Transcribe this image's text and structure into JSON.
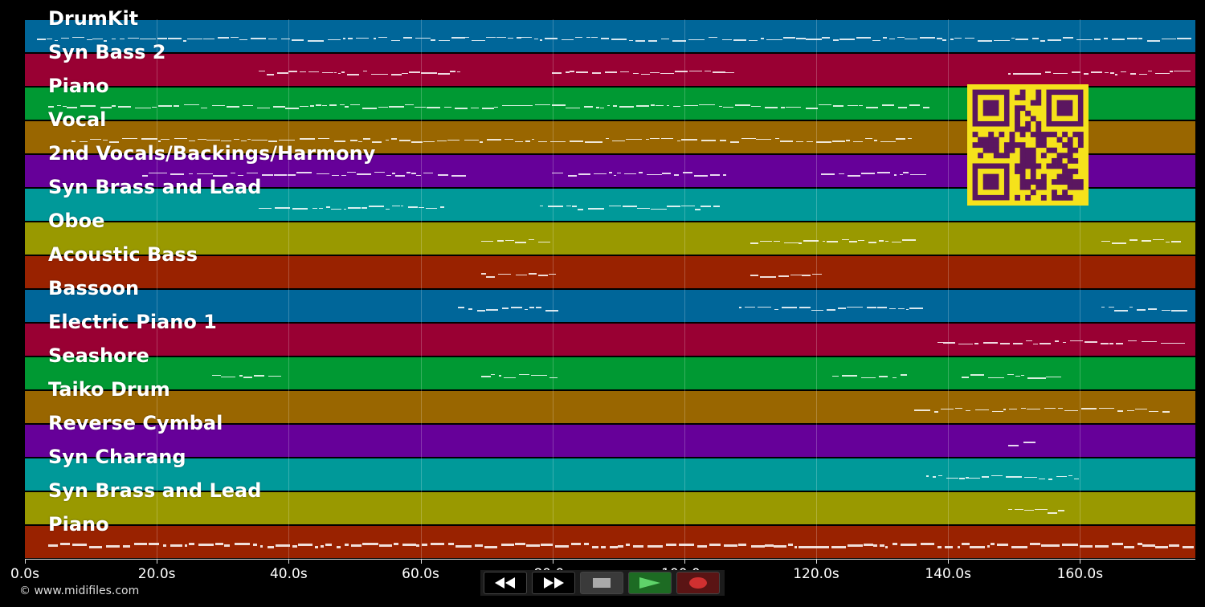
{
  "tracks": [
    {
      "name": "DrumKit",
      "color": "#006699"
    },
    {
      "name": "Syn Bass 2",
      "color": "#990033"
    },
    {
      "name": "Piano",
      "color": "#009933"
    },
    {
      "name": "Vocal",
      "color": "#996600"
    },
    {
      "name": "2nd Vocals/Backings/Harmony",
      "color": "#660099"
    },
    {
      "name": "Syn Brass and Lead",
      "color": "#009999"
    },
    {
      "name": "Oboe",
      "color": "#999900"
    },
    {
      "name": "Acoustic Bass",
      "color": "#992200"
    },
    {
      "name": "Bassoon",
      "color": "#006699"
    },
    {
      "name": "Electric Piano 1",
      "color": "#990033"
    },
    {
      "name": "Seashore",
      "color": "#009933"
    },
    {
      "name": "Taiko Drum",
      "color": "#996600"
    },
    {
      "name": "Reverse Cymbal",
      "color": "#660099"
    },
    {
      "name": "Syn Charang",
      "color": "#009999"
    },
    {
      "name": "Syn Brass and Lead",
      "color": "#999900"
    },
    {
      "name": "Piano",
      "color": "#992200"
    }
  ],
  "timeline": {
    "duration_s": 177.5,
    "ticks": [
      {
        "t": 0,
        "label": "0.0s"
      },
      {
        "t": 20,
        "label": "20.0s"
      },
      {
        "t": 40,
        "label": "40.0s"
      },
      {
        "t": 60,
        "label": "60.0s"
      },
      {
        "t": 80,
        "label": "80.0s"
      },
      {
        "t": 100,
        "label": "100.0s"
      },
      {
        "t": 120,
        "label": "120.0s"
      },
      {
        "t": 140,
        "label": "140.0s"
      },
      {
        "t": 160,
        "label": "160.0s"
      }
    ]
  },
  "footer": {
    "copyright": "© www.midifiles.com"
  },
  "transport": {
    "rewind": "rewind-icon",
    "forward": "fast-forward-icon",
    "stop": "stop-icon",
    "play": "play-icon",
    "record": "record-icon",
    "play_color": "#5fd46a",
    "record_color": "#d03030"
  },
  "qr": {
    "fg": "#5b1660",
    "bg": "#f5e21b"
  }
}
